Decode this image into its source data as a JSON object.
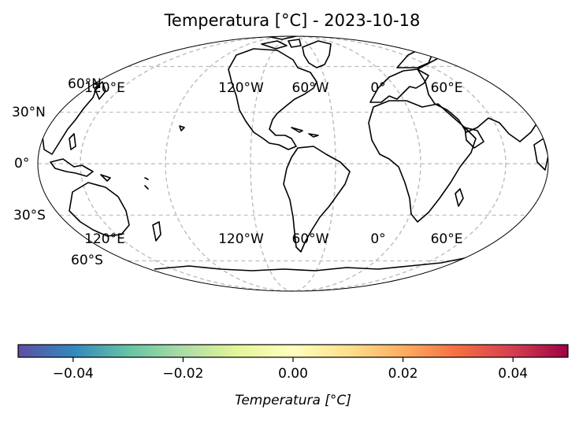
{
  "title": "Temperatura [°C] - 2023-10-18",
  "map": {
    "projection": "mollweide",
    "lat_lines": [
      -60,
      -30,
      0,
      30,
      60
    ],
    "lon_lines": [
      -180,
      -120,
      -60,
      0,
      60,
      120
    ],
    "lat_labels": [
      "60°N",
      "30°N",
      "0°",
      "30°S",
      "60°S"
    ],
    "lon_labels_top": [
      "120°E",
      "120°W",
      "60°W",
      "0°",
      "60°E"
    ],
    "lon_labels_bottom": [
      "120°E",
      "120°W",
      "60°W",
      "0°",
      "60°E"
    ],
    "gridline_color": "#bbbbbb",
    "coastline_color": "#000000"
  },
  "colorbar": {
    "label": "Temperatura [°C]",
    "range": [
      -0.05,
      0.05
    ],
    "ticks": [
      "−0.04",
      "−0.02",
      "0.00",
      "0.02",
      "0.04"
    ],
    "tick_values": [
      -0.04,
      -0.02,
      0,
      0.02,
      0.04
    ],
    "colormap": "Spectral_r",
    "colors": [
      "#5e4fa2",
      "#3288bd",
      "#66c2a5",
      "#abdda4",
      "#e6f598",
      "#ffffbf",
      "#fee08b",
      "#fdae61",
      "#f46d43",
      "#d53e4f",
      "#9e0142"
    ]
  }
}
